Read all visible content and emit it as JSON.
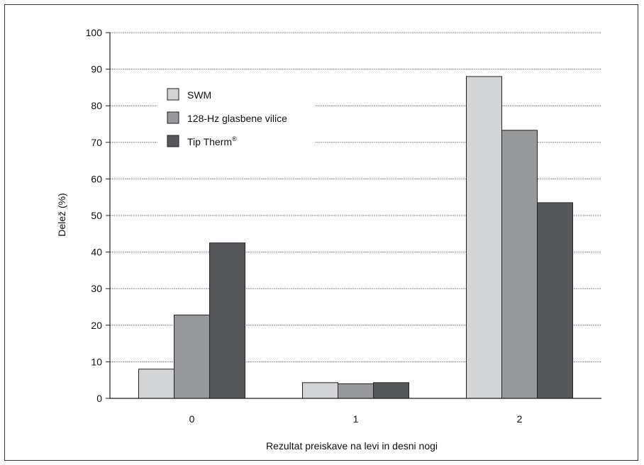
{
  "chart_data": {
    "type": "bar",
    "categories": [
      "0",
      "1",
      "2"
    ],
    "series": [
      {
        "name": "SWM",
        "color": "#d3d4d6",
        "values": [
          8,
          4.3,
          88
        ]
      },
      {
        "name": "128-Hz glasbene vilice",
        "color": "#97989b",
        "values": [
          22.8,
          4,
          73.3
        ]
      },
      {
        "name": "Tip Therm",
        "name_suffix": "®",
        "color": "#56575a",
        "values": [
          42.5,
          4.3,
          53.5
        ]
      }
    ],
    "xlabel": "Rezultat preiskave na levi in desni nogi",
    "ylabel": "Delež (%)",
    "ylim": [
      0,
      100
    ],
    "yticks": [
      0,
      10,
      20,
      30,
      40,
      50,
      60,
      70,
      80,
      90,
      100
    ],
    "grid": true,
    "legend_position": "top-left"
  }
}
